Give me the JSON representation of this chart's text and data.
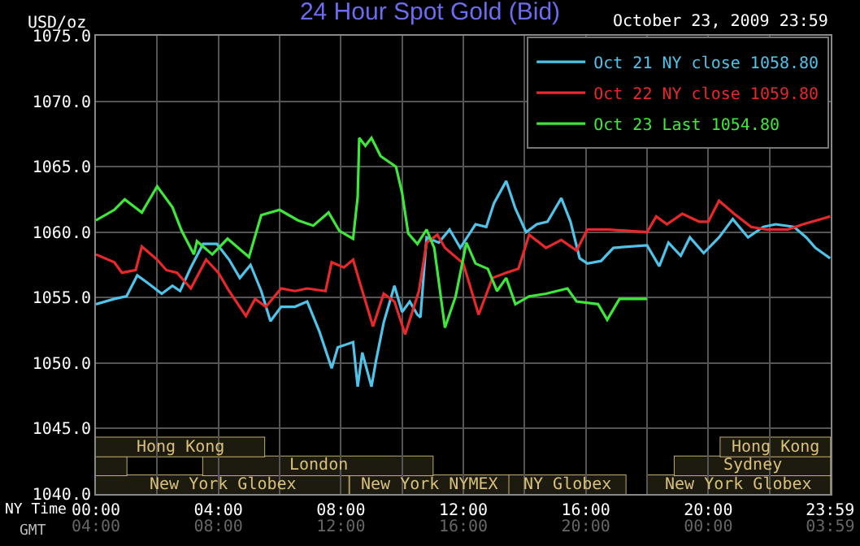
{
  "chart_data": {
    "type": "line",
    "title": "24 Hour Spot Gold (Bid)",
    "subtitle": "October 23, 2009 23:59",
    "ylabel": "USD/oz",
    "xlabel": "NY Time",
    "x2label": "GMT",
    "xlim": [
      0,
      24
    ],
    "xticks": [
      {
        "value": 0,
        "label": "00:00"
      },
      {
        "value": 2,
        "label": null
      },
      {
        "value": 4,
        "label": "04:00"
      },
      {
        "value": 6,
        "label": null
      },
      {
        "value": 8,
        "label": "08:00"
      },
      {
        "value": 10,
        "label": null
      },
      {
        "value": 12,
        "label": "12:00"
      },
      {
        "value": 14,
        "label": null
      },
      {
        "value": 16,
        "label": "16:00"
      },
      {
        "value": 18,
        "label": null
      },
      {
        "value": 20,
        "label": "20:00"
      },
      {
        "value": 22,
        "label": null
      },
      {
        "value": 23.98,
        "label": "23:59"
      }
    ],
    "x2lim": [
      "2009-10-23T04:00",
      "2009-10-24T04:00"
    ],
    "x2ticks": [
      {
        "value": "2009-10-23T04:00",
        "label": "04:00"
      },
      {
        "value": "2009-10-23T08:00",
        "label": "08:00"
      },
      {
        "value": "2009-10-23T12:00",
        "label": "12:00"
      },
      {
        "value": "2009-10-23T16:00",
        "label": "16:00"
      },
      {
        "value": "2009-10-23T20:00",
        "label": "20:00"
      },
      {
        "value": "2009-10-24T00:00",
        "label": "00:00"
      },
      {
        "value": "2009-10-24T03:59",
        "label": "03:59"
      }
    ],
    "ylim": [
      1040,
      1075
    ],
    "yticks": [
      {
        "value": 1040,
        "label": "1040.0"
      },
      {
        "value": 1045,
        "label": "1045.0"
      },
      {
        "value": 1050,
        "label": "1050.0"
      },
      {
        "value": 1055,
        "label": "1055.0"
      },
      {
        "value": 1060,
        "label": "1060.0"
      },
      {
        "value": 1065,
        "label": "1065.0"
      },
      {
        "value": 1070,
        "label": "1070.0"
      },
      {
        "value": 1075,
        "label": "1075.0"
      }
    ],
    "grid": true,
    "legend": "top right",
    "series": [
      {
        "name": "Oct 21 NY close 1058.80",
        "color": "#4fc3e8",
        "x": [
          0,
          0.6,
          1.0,
          1.35,
          1.7,
          2.15,
          2.5,
          2.75,
          3.1,
          3.5,
          3.95,
          4.35,
          4.7,
          5.05,
          5.4,
          5.7,
          6.05,
          6.5,
          6.9,
          7.3,
          7.7,
          7.9,
          8.4,
          8.55,
          8.7,
          9.0,
          9.15,
          9.4,
          9.75,
          10.0,
          10.25,
          10.5,
          10.6,
          10.8,
          11.2,
          11.55,
          11.9,
          12.4,
          12.75,
          13.0,
          13.4,
          13.7,
          14.05,
          14.4,
          14.75,
          15.2,
          15.5,
          15.8,
          16.05,
          16.5,
          16.9,
          18.0,
          18.4,
          18.7,
          19.1,
          19.4,
          19.85,
          20.35,
          20.8,
          21.3,
          21.8,
          22.2,
          22.8,
          23.2,
          23.5,
          23.98
        ],
        "values": [
          1054.5,
          1054.9,
          1055.1,
          1056.7,
          1056.1,
          1055.3,
          1055.9,
          1055.5,
          1057.3,
          1059.1,
          1059.1,
          1057.9,
          1056.5,
          1057.5,
          1055.5,
          1053.2,
          1054.3,
          1054.3,
          1054.7,
          1052.4,
          1049.6,
          1051.2,
          1051.6,
          1048.2,
          1050.8,
          1048.2,
          1050.2,
          1053.1,
          1055.9,
          1053.9,
          1054.7,
          1053.7,
          1053.5,
          1059.6,
          1059.2,
          1060.2,
          1058.8,
          1060.6,
          1060.4,
          1062.2,
          1063.9,
          1061.8,
          1060.0,
          1060.6,
          1060.8,
          1062.6,
          1060.8,
          1058.0,
          1057.6,
          1057.8,
          1058.8,
          1059.0,
          1057.4,
          1059.2,
          1058.2,
          1059.6,
          1058.4,
          1059.6,
          1061.0,
          1059.6,
          1060.4,
          1060.6,
          1060.4,
          1059.6,
          1058.8,
          1058.0
        ]
      },
      {
        "name": "Oct 22 NY close 1059.80",
        "color": "#e8282a",
        "x": [
          0,
          0.6,
          0.85,
          1.3,
          1.5,
          2.0,
          2.3,
          2.65,
          3.1,
          3.6,
          4.0,
          4.35,
          4.9,
          5.2,
          5.55,
          6.05,
          6.5,
          6.9,
          7.5,
          7.7,
          8.1,
          8.4,
          8.6,
          9.05,
          9.4,
          9.75,
          10.1,
          10.55,
          10.8,
          11.15,
          11.4,
          12.0,
          12.5,
          12.95,
          13.4,
          13.8,
          14.15,
          14.7,
          15.2,
          15.7,
          16.05,
          16.75,
          18.0,
          18.3,
          18.65,
          19.15,
          19.7,
          20.0,
          20.35,
          20.85,
          21.4,
          21.9,
          22.6,
          23.1,
          23.98
        ],
        "values": [
          1058.3,
          1057.7,
          1056.9,
          1057.1,
          1058.9,
          1057.9,
          1057.1,
          1056.9,
          1055.7,
          1057.9,
          1056.9,
          1055.5,
          1053.6,
          1054.9,
          1054.3,
          1055.7,
          1055.5,
          1055.7,
          1055.5,
          1057.7,
          1057.3,
          1057.9,
          1056.3,
          1052.8,
          1055.3,
          1054.7,
          1052.2,
          1055.5,
          1059.2,
          1059.8,
          1058.8,
          1057.6,
          1053.7,
          1056.5,
          1056.9,
          1057.2,
          1059.8,
          1058.8,
          1059.4,
          1058.6,
          1060.2,
          1060.2,
          1060.0,
          1061.2,
          1060.6,
          1061.4,
          1060.8,
          1060.8,
          1062.4,
          1061.4,
          1060.4,
          1060.2,
          1060.2,
          1060.6,
          1061.2
        ]
      },
      {
        "name": "Oct 23 Last 1054.80",
        "color": "#3ee83a",
        "x": [
          0,
          0.6,
          0.94,
          1.5,
          2.0,
          2.5,
          2.8,
          3.2,
          3.3,
          3.8,
          4.3,
          4.7,
          5.0,
          5.4,
          6.0,
          6.6,
          7.1,
          7.6,
          7.95,
          8.4,
          8.55,
          8.6,
          8.8,
          9.0,
          9.3,
          9.8,
          10.0,
          10.2,
          10.5,
          10.8,
          11.05,
          11.4,
          11.75,
          12.1,
          12.4,
          12.8,
          13.1,
          13.4,
          13.7,
          14.15,
          14.7,
          15.4,
          15.7,
          16.4,
          16.7,
          17.1,
          18.0
        ],
        "values": [
          1060.9,
          1061.7,
          1062.5,
          1061.5,
          1063.5,
          1061.9,
          1060.1,
          1058.3,
          1059.3,
          1058.3,
          1059.5,
          1058.7,
          1058.1,
          1061.3,
          1061.7,
          1060.9,
          1060.5,
          1061.5,
          1060.1,
          1059.5,
          1062.7,
          1067.2,
          1066.6,
          1067.2,
          1065.8,
          1065.0,
          1063.0,
          1059.9,
          1059.1,
          1060.2,
          1058.8,
          1052.7,
          1055.1,
          1059.2,
          1057.6,
          1057.2,
          1055.5,
          1056.5,
          1054.5,
          1055.1,
          1055.3,
          1055.7,
          1054.7,
          1054.5,
          1053.3,
          1054.9,
          1054.9
        ]
      }
    ],
    "bands": [
      {
        "axis": "x",
        "from": 0,
        "to": 8.25,
        "label": "New York Globex",
        "color": "#d8c078"
      },
      {
        "axis": "x",
        "from": 8.3,
        "to": 13.5,
        "label": "New York NYMEX",
        "color": "#d8c078"
      },
      {
        "axis": "x",
        "from": 13.5,
        "to": 17.3,
        "label": "NY Globex",
        "color": "#d8c078"
      },
      {
        "axis": "x",
        "from": 18.0,
        "to": 23.98,
        "label": "New York Globex",
        "color": "#d8c078"
      },
      {
        "axis": "x",
        "from": 0,
        "to": 1.0,
        "label": null,
        "color": "#d8c078"
      },
      {
        "axis": "x",
        "from": 3.5,
        "to": 11.0,
        "label": "London",
        "color": "#d8c078"
      },
      {
        "axis": "x",
        "from": 18.9,
        "to": 23.98,
        "label": "Sydney",
        "color": "#d8c078"
      },
      {
        "axis": "x",
        "from": 0,
        "to": 5.5,
        "label": "Hong Kong",
        "color": "#d8c078"
      },
      {
        "axis": "x",
        "from": 20.4,
        "to": 23.98,
        "label": "Hong Kong",
        "color": "#d8c078"
      }
    ]
  }
}
